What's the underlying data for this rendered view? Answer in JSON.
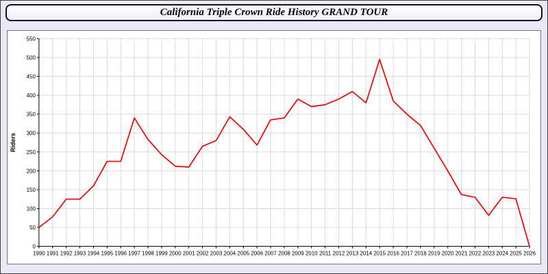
{
  "title": "California Triple Crown Ride History GRAND TOUR",
  "colors": {
    "page_bg": "#e9e9f7",
    "panel_bg": "#ffffff",
    "grid": "#d9d9d9",
    "axis": "#000000",
    "line": "#ee0000",
    "title_border": "#111111"
  },
  "chart_data": {
    "type": "line",
    "title": "California Triple Crown Ride History GRAND TOUR",
    "xlabel": "",
    "ylabel": "Riders",
    "ylim": [
      0,
      550
    ],
    "ytick_step": 50,
    "grid": true,
    "legend": "none",
    "categories": [
      1990,
      1991,
      1992,
      1993,
      1994,
      1995,
      1996,
      1997,
      1998,
      1999,
      2000,
      2001,
      2002,
      2003,
      2004,
      2005,
      2006,
      2007,
      2008,
      2009,
      2010,
      2011,
      2012,
      2013,
      2014,
      2015,
      2016,
      2017,
      2018,
      2019,
      2020,
      2021,
      2022,
      2023,
      2024,
      2025,
      2026
    ],
    "series": [
      {
        "name": "Riders",
        "values": [
          50,
          78,
          125,
          125,
          160,
          225,
          225,
          340,
          283,
          243,
          212,
          210,
          265,
          280,
          343,
          310,
          268,
          335,
          340,
          390,
          370,
          375,
          390,
          410,
          380,
          495,
          385,
          350,
          320,
          260,
          200,
          137,
          130,
          82,
          130,
          126,
          0
        ]
      }
    ]
  }
}
